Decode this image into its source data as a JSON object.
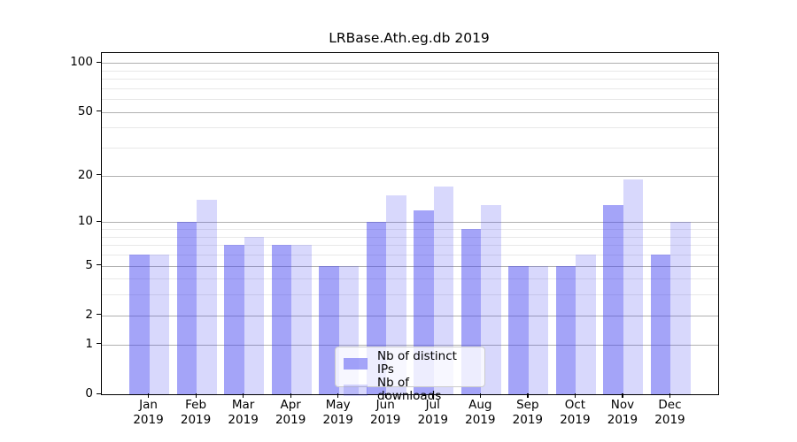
{
  "chart_data": {
    "type": "bar",
    "title": "LRBase.Ath.eg.db 2019",
    "categories": [
      "Jan",
      "Feb",
      "Mar",
      "Apr",
      "May",
      "Jun",
      "Jul",
      "Aug",
      "Sep",
      "Oct",
      "Nov",
      "Dec"
    ],
    "x_year": "2019",
    "series": [
      {
        "name": "Nb of distinct IPs",
        "color": "rgba(70,70,240,0.49)",
        "values": [
          6,
          10,
          7,
          7,
          5,
          10,
          12,
          9,
          5,
          5,
          13,
          6
        ]
      },
      {
        "name": "Nb of downloads",
        "color": "rgba(70,70,240,0.21)",
        "values": [
          6,
          14,
          8,
          7,
          5,
          15,
          17,
          13,
          5,
          6,
          19,
          10
        ]
      }
    ],
    "y_scale": "log10(1+x)",
    "y_ticks": [
      0,
      1,
      2,
      5,
      10,
      20,
      50,
      100
    ],
    "y_minor_gridlines": [
      3,
      4,
      6,
      7,
      8,
      9,
      30,
      40,
      60,
      70,
      80,
      90
    ],
    "ylim": [
      0,
      115
    ],
    "xlabel": "",
    "ylabel": "",
    "grid": true,
    "legend_position": "lower-center",
    "colors": {
      "axis": "#000000",
      "grid_major": "#b0b0b0",
      "grid_minor": "#e8e8e8",
      "legend_border": "#cccccc",
      "legend_bg": "rgba(255,255,255,0.8)"
    }
  }
}
